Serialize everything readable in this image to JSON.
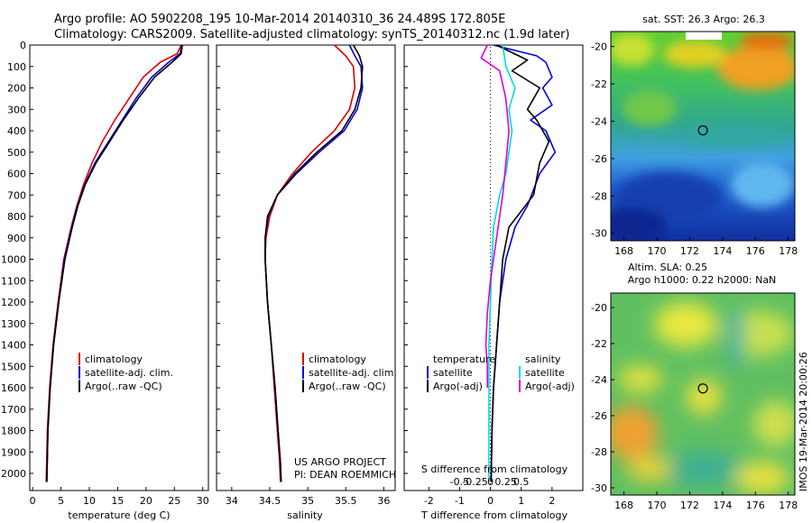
{
  "header": {
    "line1": "Argo profile: AO 5902208_195 10-Mar-2014 20140310_36 24.489S 172.805E",
    "line2": "Climatology: CARS2009. Satellite-adjusted climatology: synTS_20140312.nc (1.9d later)"
  },
  "colors": {
    "climatology": "#dd0000",
    "satellite": "#0000dd",
    "argo": "#000000",
    "sat_salinity": "#00dddd",
    "argo_adj_salinity": "#dd00dd"
  },
  "chart_data": [
    {
      "type": "line",
      "id": "temperature",
      "xlabel": "temperature (deg C)",
      "ylabel": "",
      "xlim": [
        -0.5,
        31
      ],
      "ylim": [
        2080,
        0
      ],
      "xticks": [
        0,
        5,
        10,
        15,
        20,
        25,
        30
      ],
      "yticks": [
        0,
        100,
        200,
        300,
        400,
        500,
        600,
        700,
        800,
        900,
        1000,
        1100,
        1200,
        1300,
        1400,
        1500,
        1600,
        1700,
        1800,
        1900,
        2000
      ],
      "legend": [
        "climatology",
        "satellite-adj. clim.",
        "Argo(..raw -QC)"
      ],
      "series": [
        {
          "name": "climatology",
          "x": [
            26.2,
            25.5,
            22.5,
            19.5,
            17,
            14.5,
            12.3,
            10.5,
            9,
            7.8,
            6.8,
            5.5,
            4.5,
            3.6,
            3,
            2.6,
            2.4
          ],
          "y": [
            0,
            40,
            80,
            150,
            250,
            350,
            450,
            550,
            650,
            750,
            850,
            1000,
            1200,
            1400,
            1600,
            1800,
            2040
          ]
        },
        {
          "name": "satellite-adj. clim.",
          "x": [
            26.3,
            26,
            24,
            21,
            18.2,
            15.8,
            13.4,
            11,
            9.2,
            7.9,
            6.9,
            5.6,
            4.6,
            3.7,
            3.1,
            2.7,
            2.5
          ],
          "y": [
            0,
            40,
            80,
            150,
            250,
            350,
            450,
            550,
            650,
            750,
            850,
            1000,
            1200,
            1400,
            1600,
            1800,
            2040
          ]
        },
        {
          "name": "Argo(..raw -QC)",
          "x": [
            26.4,
            26.2,
            24.6,
            21.5,
            18.6,
            16,
            13.6,
            11.2,
            9.3,
            8,
            7,
            5.7,
            4.6,
            3.7,
            3.1,
            2.7,
            2.5
          ],
          "y": [
            0,
            40,
            80,
            150,
            250,
            350,
            450,
            550,
            650,
            750,
            850,
            1000,
            1200,
            1400,
            1600,
            1800,
            2040
          ]
        }
      ]
    },
    {
      "type": "line",
      "id": "salinity",
      "xlabel": "salinity",
      "ylabel": "",
      "xlim": [
        33.8,
        36.15
      ],
      "ylim": [
        2080,
        0
      ],
      "xticks": [
        34,
        34.5,
        35,
        35.5,
        36
      ],
      "xticklabels": [
        "34",
        "34.5",
        "35",
        "35.5",
        "36"
      ],
      "legend": [
        "climatology",
        "satellite-adj. clim.",
        "Argo(..raw -QC)"
      ],
      "annotation": [
        "US ARGO PROJECT",
        "PI: DEAN ROEMMICH"
      ],
      "series": [
        {
          "name": "climatology",
          "x": [
            35.35,
            35.5,
            35.6,
            35.62,
            35.55,
            35.35,
            35.05,
            34.8,
            34.6,
            34.5,
            34.45,
            34.44,
            34.47,
            34.52,
            34.56,
            34.6,
            34.63,
            34.64
          ],
          "y": [
            0,
            50,
            100,
            200,
            300,
            400,
            500,
            600,
            700,
            800,
            900,
            1000,
            1200,
            1400,
            1600,
            1800,
            1950,
            2040
          ]
        },
        {
          "name": "satellite-adj. clim.",
          "x": [
            35.55,
            35.62,
            35.7,
            35.72,
            35.65,
            35.48,
            35.15,
            34.85,
            34.6,
            34.48,
            34.44,
            34.44,
            34.47,
            34.52,
            34.57,
            34.61,
            34.64,
            34.65
          ],
          "y": [
            0,
            50,
            100,
            200,
            300,
            400,
            500,
            600,
            700,
            800,
            900,
            1000,
            1200,
            1400,
            1600,
            1800,
            1950,
            2040
          ]
        },
        {
          "name": "Argo(..raw -QC)",
          "x": [
            35.6,
            35.68,
            35.72,
            35.7,
            35.62,
            35.45,
            35.12,
            34.83,
            34.6,
            34.47,
            34.44,
            34.44,
            34.47,
            34.52,
            34.57,
            34.61,
            34.64,
            34.65
          ],
          "y": [
            0,
            50,
            100,
            200,
            300,
            400,
            500,
            600,
            700,
            800,
            900,
            1000,
            1200,
            1400,
            1600,
            1800,
            1950,
            2040
          ]
        }
      ]
    },
    {
      "type": "line",
      "id": "differences",
      "xlabel": "T difference from climatology",
      "xlabel_top": "S difference from climatology",
      "xlim": [
        -2.8,
        3
      ],
      "ylim": [
        2080,
        0
      ],
      "xticks": [
        -2,
        -1,
        0,
        1,
        2
      ],
      "xticklabels": [
        "-2",
        "-1",
        "0",
        "1",
        "2"
      ],
      "s_ticks": [
        "-0.5",
        "-0.25",
        "0",
        "0.25",
        "0.5"
      ],
      "legend_titles": [
        "temperature",
        "salinity"
      ],
      "legend": [
        "satellite",
        "Argo(-adj)",
        "satellite",
        "Argo(-adj)"
      ],
      "series": [
        {
          "name": "temperature satellite",
          "x": [
            0.1,
            1.5,
            1.8,
            2,
            1.7,
            2,
            1.3,
            1.8,
            2.1,
            1.6,
            1.2,
            0.8,
            0.5,
            0.3,
            0.2,
            0.1,
            0.05,
            0.02
          ],
          "y": [
            0,
            50,
            80,
            150,
            200,
            280,
            350,
            400,
            500,
            600,
            750,
            850,
            1000,
            1200,
            1400,
            1600,
            1800,
            2040
          ]
        },
        {
          "name": "temperature Argo(-adj)",
          "x": [
            0.2,
            1.2,
            0.7,
            1.6,
            1.2,
            1.5,
            1.9,
            1.6,
            1.4,
            0.6,
            0.4,
            0.3,
            0.2,
            0.1,
            0.05,
            0.02
          ],
          "y": [
            0,
            70,
            120,
            200,
            300,
            350,
            450,
            550,
            700,
            850,
            1000,
            1200,
            1400,
            1600,
            1800,
            2040
          ]
        },
        {
          "name": "salinity satellite",
          "x": [
            0.4,
            0.5,
            0.8,
            0.6,
            0.7,
            0.6,
            0.5,
            0.3,
            0.1,
            0.05,
            0,
            -0.05,
            -0.05,
            -0.05,
            -0.05
          ],
          "y": [
            0,
            100,
            200,
            300,
            400,
            500,
            600,
            700,
            850,
            1000,
            1200,
            1400,
            1600,
            1800,
            2040
          ]
        },
        {
          "name": "salinity Argo(-adj)",
          "x": [
            -0.1,
            -0.3,
            0.3,
            0.5,
            0.6,
            0.5,
            0.4,
            0.2,
            0,
            -0.1,
            -0.15,
            -0.1,
            -0.1
          ],
          "y": [
            0,
            60,
            120,
            250,
            400,
            550,
            700,
            900,
            1100,
            1250,
            1400,
            1500,
            1600
          ]
        }
      ]
    },
    {
      "type": "heatmap",
      "id": "sst_map",
      "title": "sat. SST: 26.3 Argo: 26.3",
      "xlim": [
        167.2,
        178.4
      ],
      "ylim": [
        -30.4,
        -19.2
      ],
      "xticks": [
        168,
        170,
        172,
        174,
        176,
        178
      ],
      "yticks": [
        -20,
        -22,
        -24,
        -26,
        -28,
        -30
      ],
      "marker": {
        "lon": 172.805,
        "lat": -24.489
      }
    },
    {
      "type": "heatmap",
      "id": "sla_map",
      "title": "Altim. SLA: 0.25",
      "subtitle": "Argo h1000: 0.22 h2000: NaN",
      "xlim": [
        167.2,
        178.4
      ],
      "ylim": [
        -30.4,
        -19.2
      ],
      "xticks": [
        168,
        170,
        172,
        174,
        176,
        178
      ],
      "yticks": [
        -20,
        -22,
        -24,
        -26,
        -28,
        -30
      ],
      "marker": {
        "lon": 172.805,
        "lat": -24.489
      }
    }
  ],
  "side_label": "IMOS 19-Mar-2014 20:00:26"
}
